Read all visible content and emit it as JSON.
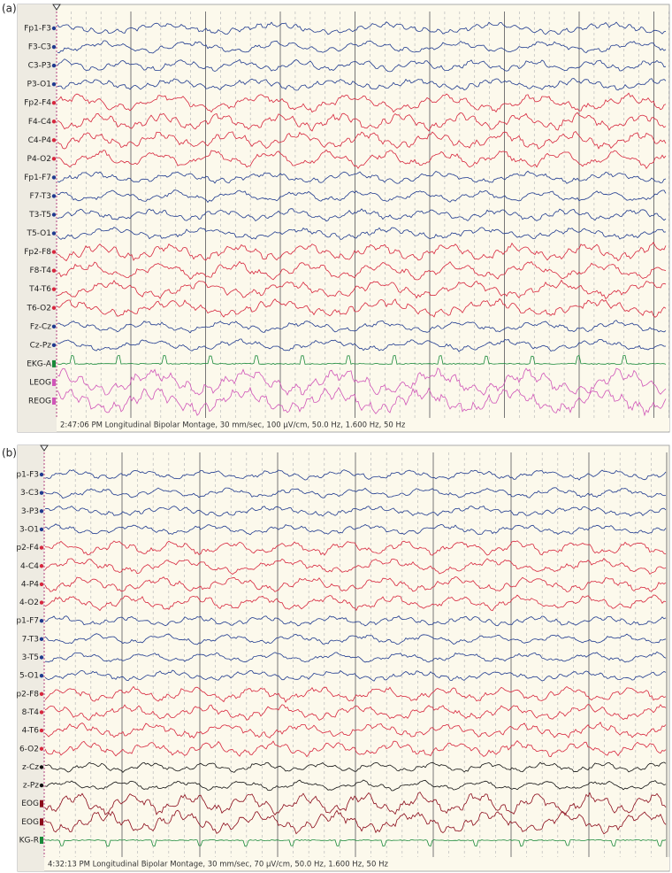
{
  "panels": [
    {
      "label": "(a)",
      "channels": [
        {
          "name": "Fp1-F3",
          "color": "#1f3a8f"
        },
        {
          "name": "F3-C3",
          "color": "#1f3a8f"
        },
        {
          "name": "C3-P3",
          "color": "#1f3a8f"
        },
        {
          "name": "P3-O1",
          "color": "#1f3a8f"
        },
        {
          "name": "Fp2-F4",
          "color": "#d7263d"
        },
        {
          "name": "F4-C4",
          "color": "#d7263d"
        },
        {
          "name": "C4-P4",
          "color": "#d7263d"
        },
        {
          "name": "P4-O2",
          "color": "#d7263d"
        },
        {
          "name": "Fp1-F7",
          "color": "#1f3a8f"
        },
        {
          "name": "F7-T3",
          "color": "#1f3a8f"
        },
        {
          "name": "T3-T5",
          "color": "#1f3a8f"
        },
        {
          "name": "T5-O1",
          "color": "#1f3a8f"
        },
        {
          "name": "Fp2-F8",
          "color": "#d7263d"
        },
        {
          "name": "F8-T4",
          "color": "#d7263d"
        },
        {
          "name": "T4-T6",
          "color": "#d7263d"
        },
        {
          "name": "T6-O2",
          "color": "#d7263d"
        },
        {
          "name": "Fz-Cz",
          "color": "#1f3a8f"
        },
        {
          "name": "Cz-Pz",
          "color": "#1f3a8f"
        },
        {
          "name": "EKG-A",
          "color": "#1a8a3a"
        },
        {
          "name": "LEOG",
          "color": "#d055b8"
        },
        {
          "name": "REOG",
          "color": "#d055b8"
        }
      ],
      "footer": "2:47:06 PM Longitudinal Bipolar Montage, 30 mm/sec, 100 µV/cm, 50.0 Hz, 1.600 Hz, 50 Hz"
    },
    {
      "label": "(b)",
      "channels": [
        {
          "name": "p1-F3",
          "color": "#1f3a8f"
        },
        {
          "name": "3-C3",
          "color": "#1f3a8f"
        },
        {
          "name": "3-P3",
          "color": "#1f3a8f"
        },
        {
          "name": "3-O1",
          "color": "#1f3a8f"
        },
        {
          "name": "p2-F4",
          "color": "#d7263d"
        },
        {
          "name": "4-C4",
          "color": "#d7263d"
        },
        {
          "name": "4-P4",
          "color": "#d7263d"
        },
        {
          "name": "4-O2",
          "color": "#d7263d"
        },
        {
          "name": "p1-F7",
          "color": "#1f3a8f"
        },
        {
          "name": "7-T3",
          "color": "#1f3a8f"
        },
        {
          "name": "3-T5",
          "color": "#1f3a8f"
        },
        {
          "name": "5-O1",
          "color": "#1f3a8f"
        },
        {
          "name": "p2-F8",
          "color": "#d7263d"
        },
        {
          "name": "8-T4",
          "color": "#d7263d"
        },
        {
          "name": "4-T6",
          "color": "#d7263d"
        },
        {
          "name": "6-O2",
          "color": "#d7263d"
        },
        {
          "name": "z-Cz",
          "color": "#111111"
        },
        {
          "name": "z-Pz",
          "color": "#111111"
        },
        {
          "name": "EOG",
          "color": "#8b0a1a"
        },
        {
          "name": "EOG",
          "color": "#8b0a1a"
        },
        {
          "name": "KG-R",
          "color": "#1a8a3a"
        }
      ],
      "footer": "4:32:13 PM Longitudinal Bipolar Montage, 30 mm/sec, 70 µV/cm, 50.0 Hz, 1.600 Hz, 50 Hz"
    }
  ]
}
